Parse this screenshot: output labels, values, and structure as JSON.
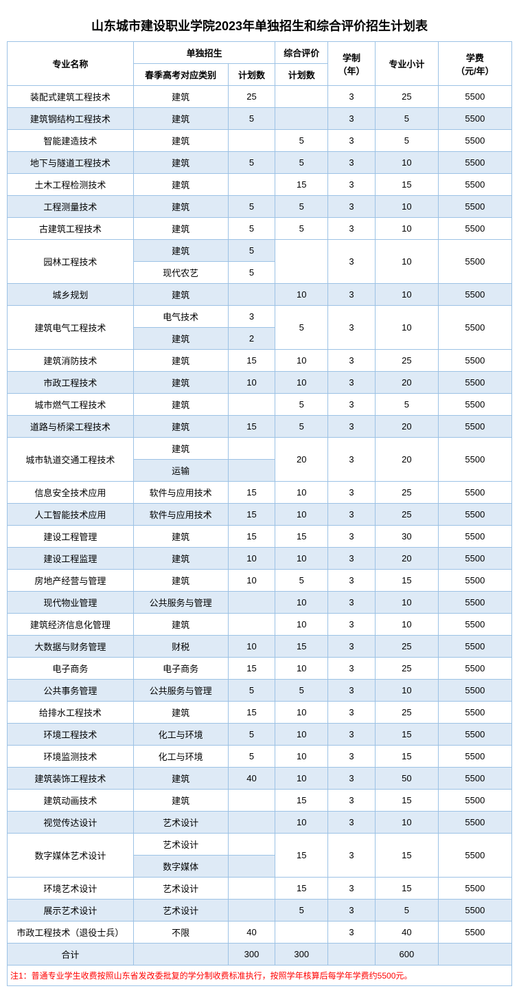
{
  "title": "山东城市建设职业学院2023年单独招生和综合评价招生计划表",
  "headers": {
    "major": "专业名称",
    "group1": "单独招生",
    "group2": "综合评价",
    "cat": "春季高考对应类别",
    "plan": "计划数",
    "years": "学制\n（年）",
    "subtotal": "专业小计",
    "fee": "学费\n（元/年）"
  },
  "rows": [
    {
      "type": "single",
      "major": "装配式建筑工程技术",
      "cat": "建筑",
      "p1": "25",
      "p2": "",
      "yr": "3",
      "sub": "25",
      "fee": "5500",
      "stripe": "odd"
    },
    {
      "type": "single",
      "major": "建筑钢结构工程技术",
      "cat": "建筑",
      "p1": "5",
      "p2": "",
      "yr": "3",
      "sub": "5",
      "fee": "5500",
      "stripe": "even"
    },
    {
      "type": "single",
      "major": "智能建造技术",
      "cat": "建筑",
      "p1": "",
      "p2": "5",
      "yr": "3",
      "sub": "5",
      "fee": "5500",
      "stripe": "odd"
    },
    {
      "type": "single",
      "major": "地下与隧道工程技术",
      "cat": "建筑",
      "p1": "5",
      "p2": "5",
      "yr": "3",
      "sub": "10",
      "fee": "5500",
      "stripe": "even"
    },
    {
      "type": "single",
      "major": "土木工程检测技术",
      "cat": "建筑",
      "p1": "",
      "p2": "15",
      "yr": "3",
      "sub": "15",
      "fee": "5500",
      "stripe": "odd"
    },
    {
      "type": "single",
      "major": "工程测量技术",
      "cat": "建筑",
      "p1": "5",
      "p2": "5",
      "yr": "3",
      "sub": "10",
      "fee": "5500",
      "stripe": "even"
    },
    {
      "type": "single",
      "major": "古建筑工程技术",
      "cat": "建筑",
      "p1": "5",
      "p2": "5",
      "yr": "3",
      "sub": "10",
      "fee": "5500",
      "stripe": "odd"
    },
    {
      "type": "multi",
      "major": "园林工程技术",
      "subs": [
        {
          "cat": "建筑",
          "p1": "5",
          "stripe": "even"
        },
        {
          "cat": "现代农艺",
          "p1": "5",
          "stripe": "odd"
        }
      ],
      "p2": "",
      "yr": "3",
      "sub": "10",
      "fee": "5500"
    },
    {
      "type": "single",
      "major": "城乡规划",
      "cat": "建筑",
      "p1": "",
      "p2": "10",
      "yr": "3",
      "sub": "10",
      "fee": "5500",
      "stripe": "even"
    },
    {
      "type": "multi",
      "major": "建筑电气工程技术",
      "subs": [
        {
          "cat": "电气技术",
          "p1": "3",
          "stripe": "odd"
        },
        {
          "cat": "建筑",
          "p1": "2",
          "stripe": "even"
        }
      ],
      "p2": "5",
      "yr": "3",
      "sub": "10",
      "fee": "5500"
    },
    {
      "type": "single",
      "major": "建筑消防技术",
      "cat": "建筑",
      "p1": "15",
      "p2": "10",
      "yr": "3",
      "sub": "25",
      "fee": "5500",
      "stripe": "odd"
    },
    {
      "type": "single",
      "major": "市政工程技术",
      "cat": "建筑",
      "p1": "10",
      "p2": "10",
      "yr": "3",
      "sub": "20",
      "fee": "5500",
      "stripe": "even"
    },
    {
      "type": "single",
      "major": "城市燃气工程技术",
      "cat": "建筑",
      "p1": "",
      "p2": "5",
      "yr": "3",
      "sub": "5",
      "fee": "5500",
      "stripe": "odd"
    },
    {
      "type": "single",
      "major": "道路与桥梁工程技术",
      "cat": "建筑",
      "p1": "15",
      "p2": "5",
      "yr": "3",
      "sub": "20",
      "fee": "5500",
      "stripe": "even"
    },
    {
      "type": "multi",
      "major": "城市轨道交通工程技术",
      "subs": [
        {
          "cat": "建筑",
          "p1": "",
          "stripe": "odd"
        },
        {
          "cat": "运输",
          "p1": "",
          "stripe": "even"
        }
      ],
      "p2": "20",
      "yr": "3",
      "sub": "20",
      "fee": "5500"
    },
    {
      "type": "single",
      "major": "信息安全技术应用",
      "cat": "软件与应用技术",
      "p1": "15",
      "p2": "10",
      "yr": "3",
      "sub": "25",
      "fee": "5500",
      "stripe": "odd"
    },
    {
      "type": "single",
      "major": "人工智能技术应用",
      "cat": "软件与应用技术",
      "p1": "15",
      "p2": "10",
      "yr": "3",
      "sub": "25",
      "fee": "5500",
      "stripe": "even"
    },
    {
      "type": "single",
      "major": "建设工程管理",
      "cat": "建筑",
      "p1": "15",
      "p2": "15",
      "yr": "3",
      "sub": "30",
      "fee": "5500",
      "stripe": "odd"
    },
    {
      "type": "single",
      "major": "建设工程监理",
      "cat": "建筑",
      "p1": "10",
      "p2": "10",
      "yr": "3",
      "sub": "20",
      "fee": "5500",
      "stripe": "even"
    },
    {
      "type": "single",
      "major": "房地产经营与管理",
      "cat": "建筑",
      "p1": "10",
      "p2": "5",
      "yr": "3",
      "sub": "15",
      "fee": "5500",
      "stripe": "odd"
    },
    {
      "type": "single",
      "major": "现代物业管理",
      "cat": "公共服务与管理",
      "p1": "",
      "p2": "10",
      "yr": "3",
      "sub": "10",
      "fee": "5500",
      "stripe": "even"
    },
    {
      "type": "single",
      "major": "建筑经济信息化管理",
      "cat": "建筑",
      "p1": "",
      "p2": "10",
      "yr": "3",
      "sub": "10",
      "fee": "5500",
      "stripe": "odd"
    },
    {
      "type": "single",
      "major": "大数据与财务管理",
      "cat": "财税",
      "p1": "10",
      "p2": "15",
      "yr": "3",
      "sub": "25",
      "fee": "5500",
      "stripe": "even"
    },
    {
      "type": "single",
      "major": "电子商务",
      "cat": "电子商务",
      "p1": "15",
      "p2": "10",
      "yr": "3",
      "sub": "25",
      "fee": "5500",
      "stripe": "odd"
    },
    {
      "type": "single",
      "major": "公共事务管理",
      "cat": "公共服务与管理",
      "p1": "5",
      "p2": "5",
      "yr": "3",
      "sub": "10",
      "fee": "5500",
      "stripe": "even"
    },
    {
      "type": "single",
      "major": "给排水工程技术",
      "cat": "建筑",
      "p1": "15",
      "p2": "10",
      "yr": "3",
      "sub": "25",
      "fee": "5500",
      "stripe": "odd"
    },
    {
      "type": "single",
      "major": "环境工程技术",
      "cat": "化工与环境",
      "p1": "5",
      "p2": "10",
      "yr": "3",
      "sub": "15",
      "fee": "5500",
      "stripe": "even"
    },
    {
      "type": "single",
      "major": "环境监测技术",
      "cat": "化工与环境",
      "p1": "5",
      "p2": "10",
      "yr": "3",
      "sub": "15",
      "fee": "5500",
      "stripe": "odd"
    },
    {
      "type": "single",
      "major": "建筑装饰工程技术",
      "cat": "建筑",
      "p1": "40",
      "p2": "10",
      "yr": "3",
      "sub": "50",
      "fee": "5500",
      "stripe": "even"
    },
    {
      "type": "single",
      "major": "建筑动画技术",
      "cat": "建筑",
      "p1": "",
      "p2": "15",
      "yr": "3",
      "sub": "15",
      "fee": "5500",
      "stripe": "odd"
    },
    {
      "type": "single",
      "major": "视觉传达设计",
      "cat": "艺术设计",
      "p1": "",
      "p2": "10",
      "yr": "3",
      "sub": "10",
      "fee": "5500",
      "stripe": "even"
    },
    {
      "type": "multi",
      "major": "数字媒体艺术设计",
      "subs": [
        {
          "cat": "艺术设计",
          "p1": "",
          "stripe": "odd"
        },
        {
          "cat": "数字媒体",
          "p1": "",
          "stripe": "even"
        }
      ],
      "p2": "15",
      "yr": "3",
      "sub": "15",
      "fee": "5500"
    },
    {
      "type": "single",
      "major": "环境艺术设计",
      "cat": "艺术设计",
      "p1": "",
      "p2": "15",
      "yr": "3",
      "sub": "15",
      "fee": "5500",
      "stripe": "odd"
    },
    {
      "type": "single",
      "major": "展示艺术设计",
      "cat": "艺术设计",
      "p1": "",
      "p2": "5",
      "yr": "3",
      "sub": "5",
      "fee": "5500",
      "stripe": "even"
    },
    {
      "type": "single",
      "major": "市政工程技术（退役士兵）",
      "cat": "不限",
      "p1": "40",
      "p2": "",
      "yr": "3",
      "sub": "40",
      "fee": "5500",
      "stripe": "odd"
    },
    {
      "type": "single",
      "major": "合计",
      "cat": "",
      "p1": "300",
      "p2": "300",
      "yr": "",
      "sub": "600",
      "fee": "",
      "stripe": "even"
    }
  ],
  "footnote": "注1：普通专业学生收费按照山东省发改委批复的学分制收费标准执行，按照学年核算后每学年学费约5500元。",
  "colors": {
    "border": "#9cc2e5",
    "even_bg": "#deeaf6",
    "odd_bg": "#ffffff",
    "footnote_color": "#ff0000"
  }
}
